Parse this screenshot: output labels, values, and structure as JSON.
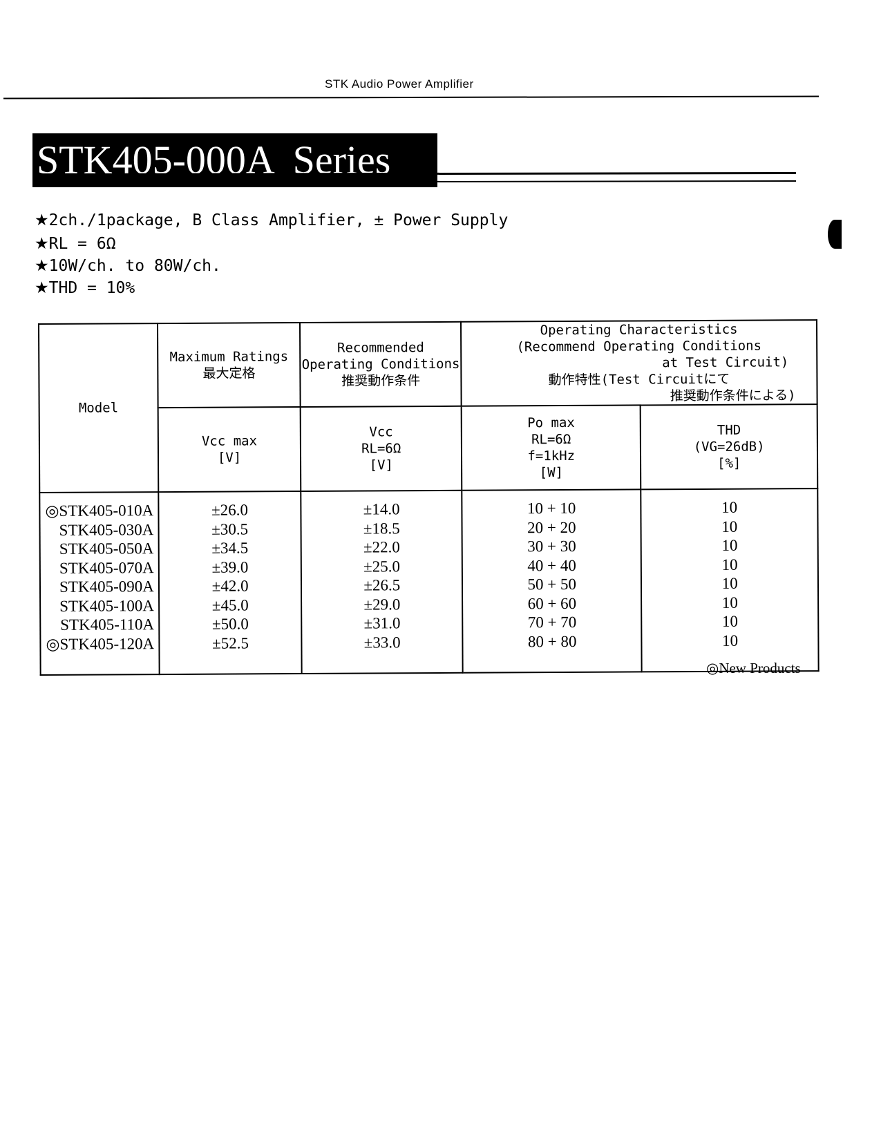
{
  "running_header": "STK Audio Power Amplifier",
  "title": "STK405-000A  Series",
  "features": [
    {
      "icon": "star-icon",
      "text": "2ch./1package, B Class Amplifier, ± Power Supply"
    },
    {
      "icon": "star-icon",
      "text": "RL = 6Ω"
    },
    {
      "icon": "star-icon",
      "text": "10W/ch. to 80W/ch."
    },
    {
      "icon": "star-icon",
      "text": "THD = 10%"
    }
  ],
  "table": {
    "headers": {
      "model": "Model",
      "max_ratings": "Maximum Ratings",
      "max_ratings_jp": "最大定格",
      "recommended": "Recommended",
      "recommended2": "Operating Conditions",
      "recommended_jp": "推奨動作条件",
      "operating": "Operating Characteristics",
      "operating2": "(Recommend Operating Conditions",
      "operating3": "at Test Circuit)",
      "operating_jp": "動作特性(Test Circuitにて",
      "operating_jp2": "推奨動作条件による)",
      "vcc_max": "Vcc max",
      "vcc_max_unit": "[V]",
      "vcc": "Vcc",
      "vcc_cond": "RL=6Ω",
      "vcc_unit": "[V]",
      "po_max": "Po max",
      "po_cond1": "RL=6Ω",
      "po_cond2": "f=1kHz",
      "po_unit": "[W]",
      "thd": "THD",
      "thd_cond": "(VG=26dB)",
      "thd_unit": "[%]"
    },
    "rows": [
      {
        "model": "◎STK405-010A",
        "vcc_max": "±26.0",
        "vcc": "±14.0",
        "po": "10 + 10",
        "thd": "10"
      },
      {
        "model": "STK405-030A",
        "vcc_max": "±30.5",
        "vcc": "±18.5",
        "po": "20 + 20",
        "thd": "10"
      },
      {
        "model": "STK405-050A",
        "vcc_max": "±34.5",
        "vcc": "±22.0",
        "po": "30 + 30",
        "thd": "10"
      },
      {
        "model": "STK405-070A",
        "vcc_max": "±39.0",
        "vcc": "±25.0",
        "po": "40 + 40",
        "thd": "10"
      },
      {
        "model": "STK405-090A",
        "vcc_max": "±42.0",
        "vcc": "±26.5",
        "po": "50 + 50",
        "thd": "10"
      },
      {
        "model": "STK405-100A",
        "vcc_max": "±45.0",
        "vcc": "±29.0",
        "po": "60 + 60",
        "thd": "10"
      },
      {
        "model": "STK405-110A",
        "vcc_max": "±50.0",
        "vcc": "±31.0",
        "po": "70 + 70",
        "thd": "10"
      },
      {
        "model": "◎STK405-120A",
        "vcc_max": "±52.5",
        "vcc": "±33.0",
        "po": "80 + 80",
        "thd": "10"
      }
    ]
  },
  "note": "◎New Products"
}
